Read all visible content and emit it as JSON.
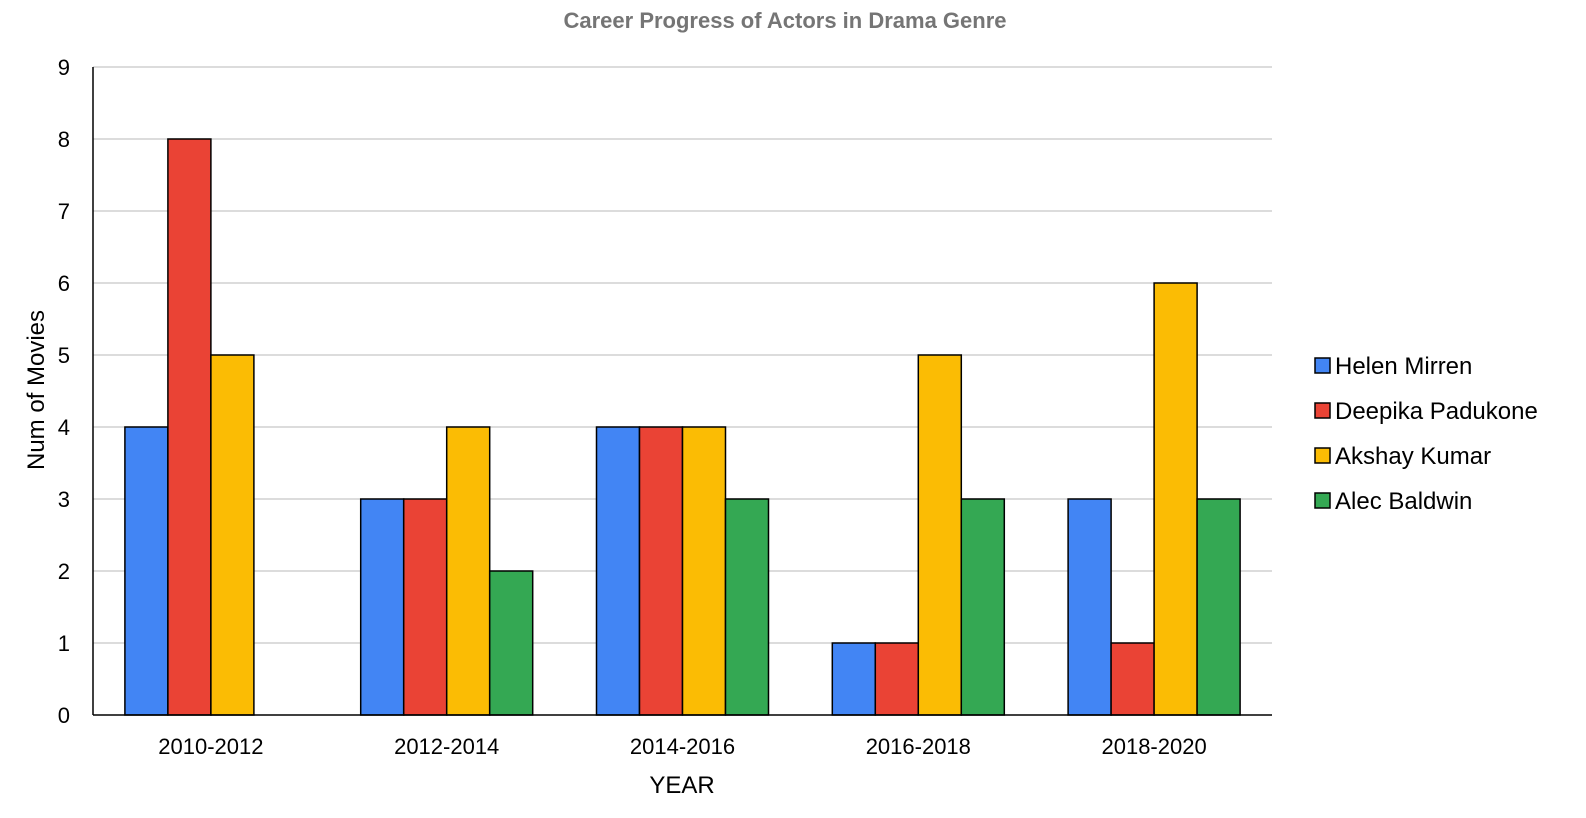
{
  "chart_data": {
    "type": "bar",
    "title": "Career Progress of Actors in Drama Genre",
    "xlabel": "YEAR",
    "ylabel": "Num of Movies",
    "ylim": [
      0,
      9
    ],
    "yticks": [
      "0",
      "1",
      "2",
      "3",
      "4",
      "5",
      "6",
      "7",
      "8",
      "9"
    ],
    "grid": true,
    "legend_position": "right",
    "categories": [
      "2010-2012",
      "2012-2014",
      "2014-2016",
      "2016-2018",
      "2018-2020"
    ],
    "series": [
      {
        "name": "Helen Mirren",
        "color": "#4285F4",
        "values": [
          4,
          3,
          4,
          1,
          3
        ]
      },
      {
        "name": "Deepika Padukone",
        "color": "#EA4335",
        "values": [
          8,
          3,
          4,
          1,
          1
        ]
      },
      {
        "name": "Akshay Kumar",
        "color": "#FBBC04",
        "values": [
          5,
          4,
          4,
          5,
          6
        ]
      },
      {
        "name": "Alec Baldwin",
        "color": "#34A853",
        "values": [
          0,
          2,
          3,
          3,
          3
        ]
      }
    ]
  }
}
